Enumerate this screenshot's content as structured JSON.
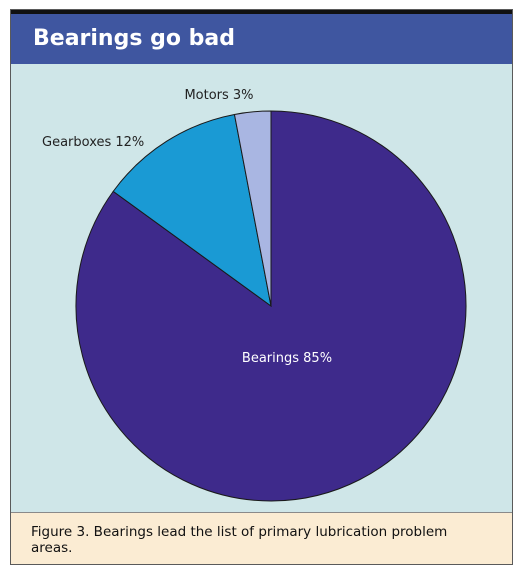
{
  "header": {
    "title": "Bearings go bad"
  },
  "caption": {
    "text": "Figure 3. Beаrings lead the list of primary lubrication problem areas."
  },
  "colors": {
    "header_bg": "#3f56a0",
    "panel_bg": "#cfe6e8",
    "caption_bg": "#fbecd3"
  },
  "chart_data": {
    "type": "pie",
    "title": "Bearings go bad",
    "slices": [
      {
        "label": "Bearings 85%",
        "value": 85,
        "color": "#3e2a8b",
        "label_color": "#ffffff",
        "label_position": "inside"
      },
      {
        "label": "Gearboxes 12%",
        "value": 12,
        "color": "#1a9ad4",
        "label_color": "#222222",
        "label_position": "outside-left"
      },
      {
        "label": "Motors 3%",
        "value": 3,
        "color": "#a9b6e2",
        "label_color": "#222222",
        "label_position": "outside-top"
      }
    ],
    "start_angle_deg": 0,
    "direction": "clockwise",
    "legend": "none"
  }
}
